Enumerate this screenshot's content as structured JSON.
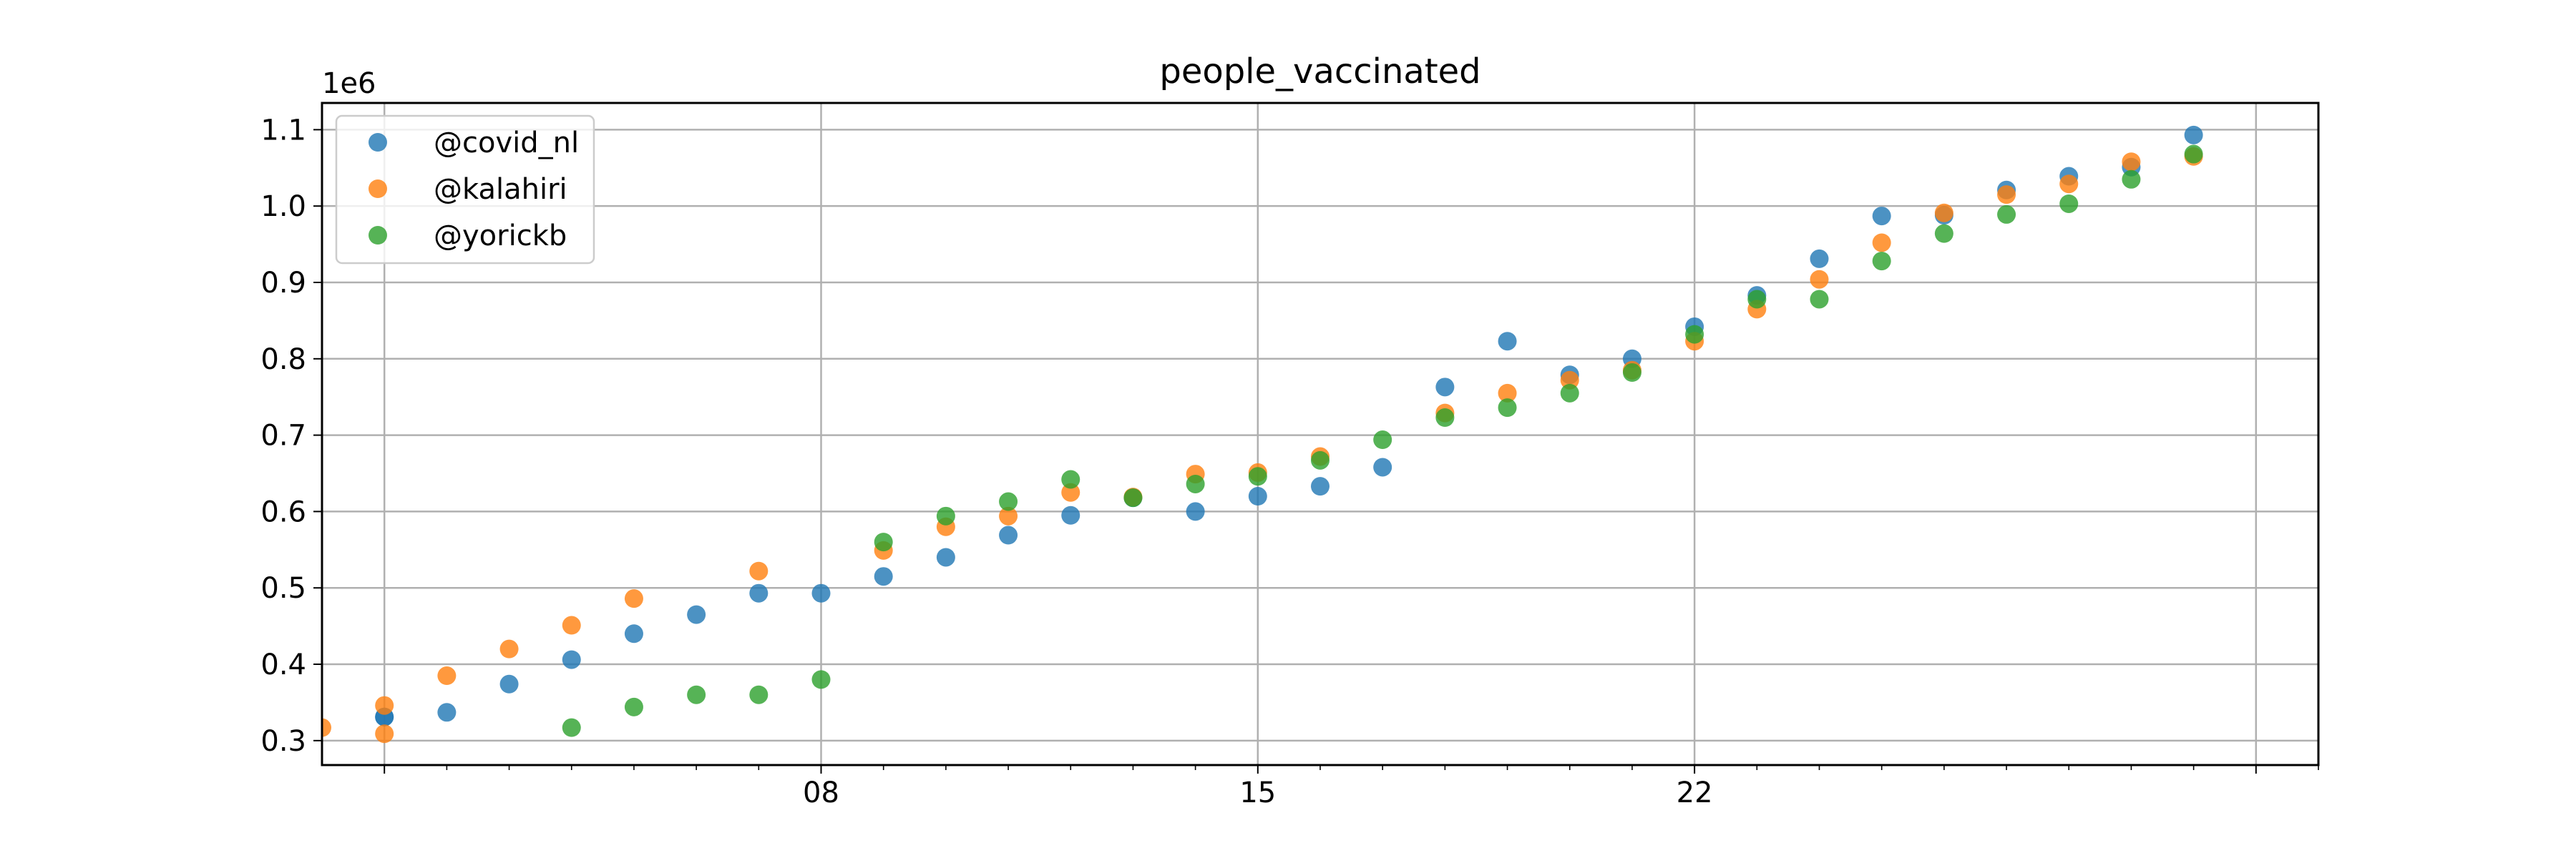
{
  "chart_data": {
    "type": "scatter",
    "title": "people_vaccinated",
    "y_offset_text": "1e6",
    "xlabel": "",
    "ylabel": "",
    "xlim": [
      "2021-02-28",
      "2021-04-01"
    ],
    "ylim": [
      268000,
      1135000
    ],
    "grid": true,
    "legend_position": "upper-left",
    "x_ticks": [
      {
        "date": "2021-03-01",
        "label": ""
      },
      {
        "date": "2021-03-08",
        "label": "08"
      },
      {
        "date": "2021-03-15",
        "label": "15"
      },
      {
        "date": "2021-03-22",
        "label": "22"
      },
      {
        "date": "2021-03-31",
        "label": ""
      }
    ],
    "x_minor_tick_dates": [
      "2021-03-02",
      "2021-03-03",
      "2021-03-04",
      "2021-03-05",
      "2021-03-06",
      "2021-03-07",
      "2021-03-09",
      "2021-03-10",
      "2021-03-11",
      "2021-03-12",
      "2021-03-13",
      "2021-03-14",
      "2021-03-16",
      "2021-03-17",
      "2021-03-18",
      "2021-03-19",
      "2021-03-20",
      "2021-03-21",
      "2021-03-23",
      "2021-03-24",
      "2021-03-25",
      "2021-03-26",
      "2021-03-27",
      "2021-03-28",
      "2021-03-29",
      "2021-03-30",
      "2021-04-01"
    ],
    "y_ticks": [
      {
        "value": 300000,
        "label": "0.3"
      },
      {
        "value": 400000,
        "label": "0.4"
      },
      {
        "value": 500000,
        "label": "0.5"
      },
      {
        "value": 600000,
        "label": "0.6"
      },
      {
        "value": 700000,
        "label": "0.7"
      },
      {
        "value": 800000,
        "label": "0.8"
      },
      {
        "value": 900000,
        "label": "0.9"
      },
      {
        "value": 1000000,
        "label": "1.0"
      },
      {
        "value": 1100000,
        "label": "1.1"
      }
    ],
    "series": [
      {
        "name": "@covid_nl",
        "color": "#1f77b4",
        "points": [
          [
            "2021-02-29",
            331000
          ],
          [
            "2021-03-01",
            331000
          ],
          [
            "2021-03-02",
            337000
          ],
          [
            "2021-03-03",
            374000
          ],
          [
            "2021-03-04",
            406000
          ],
          [
            "2021-03-05",
            440000
          ],
          [
            "2021-03-06",
            465000
          ],
          [
            "2021-03-07",
            493000
          ],
          [
            "2021-03-08",
            493000
          ],
          [
            "2021-03-09",
            515000
          ],
          [
            "2021-03-10",
            540000
          ],
          [
            "2021-03-11",
            569000
          ],
          [
            "2021-03-12",
            595000
          ],
          [
            "2021-03-13",
            618000
          ],
          [
            "2021-03-14",
            600000
          ],
          [
            "2021-03-15",
            620000
          ],
          [
            "2021-03-16",
            633000
          ],
          [
            "2021-03-17",
            658000
          ],
          [
            "2021-03-18",
            763000
          ],
          [
            "2021-03-19",
            823000
          ],
          [
            "2021-03-20",
            779000
          ],
          [
            "2021-03-21",
            800000
          ],
          [
            "2021-03-22",
            842000
          ],
          [
            "2021-03-23",
            883000
          ],
          [
            "2021-03-24",
            931000
          ],
          [
            "2021-03-25",
            987000
          ],
          [
            "2021-03-26",
            988000
          ],
          [
            "2021-03-27",
            1021000
          ],
          [
            "2021-03-28",
            1039000
          ],
          [
            "2021-03-29",
            1051000
          ],
          [
            "2021-03-30",
            1093000
          ]
        ]
      },
      {
        "name": "@kalahiri",
        "color": "#ff7f0e",
        "points": [
          [
            "2021-02-28",
            317000
          ],
          [
            "2021-02-29",
            309000
          ],
          [
            "2021-03-01",
            346000
          ],
          [
            "2021-03-02",
            385000
          ],
          [
            "2021-03-03",
            420000
          ],
          [
            "2021-03-04",
            451000
          ],
          [
            "2021-03-05",
            486000
          ],
          [
            "2021-03-07",
            522000
          ],
          [
            "2021-03-09",
            549000
          ],
          [
            "2021-03-10",
            580000
          ],
          [
            "2021-03-11",
            594000
          ],
          [
            "2021-03-12",
            625000
          ],
          [
            "2021-03-13",
            619000
          ],
          [
            "2021-03-14",
            649000
          ],
          [
            "2021-03-15",
            651000
          ],
          [
            "2021-03-16",
            672000
          ],
          [
            "2021-03-18",
            729000
          ],
          [
            "2021-03-19",
            755000
          ],
          [
            "2021-03-20",
            772000
          ],
          [
            "2021-03-21",
            785000
          ],
          [
            "2021-03-22",
            823000
          ],
          [
            "2021-03-23",
            865000
          ],
          [
            "2021-03-24",
            904000
          ],
          [
            "2021-03-25",
            952000
          ],
          [
            "2021-03-26",
            991000
          ],
          [
            "2021-03-27",
            1015000
          ],
          [
            "2021-03-28",
            1029000
          ],
          [
            "2021-03-29",
            1058000
          ],
          [
            "2021-03-30",
            1065000
          ]
        ]
      },
      {
        "name": "@yorickb",
        "color": "#2ca02c",
        "points": [
          [
            "2021-03-04",
            317000
          ],
          [
            "2021-03-05",
            344000
          ],
          [
            "2021-03-06",
            360000
          ],
          [
            "2021-03-07",
            360000
          ],
          [
            "2021-03-08",
            380000
          ],
          [
            "2021-03-09",
            560000
          ],
          [
            "2021-03-10",
            594000
          ],
          [
            "2021-03-11",
            613000
          ],
          [
            "2021-03-12",
            642000
          ],
          [
            "2021-03-13",
            618000
          ],
          [
            "2021-03-14",
            636000
          ],
          [
            "2021-03-15",
            646000
          ],
          [
            "2021-03-16",
            667000
          ],
          [
            "2021-03-17",
            694000
          ],
          [
            "2021-03-18",
            723000
          ],
          [
            "2021-03-19",
            736000
          ],
          [
            "2021-03-20",
            755000
          ],
          [
            "2021-03-21",
            782000
          ],
          [
            "2021-03-22",
            832000
          ],
          [
            "2021-03-23",
            878000
          ],
          [
            "2021-03-24",
            878000
          ],
          [
            "2021-03-25",
            928000
          ],
          [
            "2021-03-26",
            964000
          ],
          [
            "2021-03-27",
            989000
          ],
          [
            "2021-03-28",
            1003000
          ],
          [
            "2021-03-29",
            1035000
          ],
          [
            "2021-03-30",
            1068000
          ]
        ]
      }
    ]
  }
}
